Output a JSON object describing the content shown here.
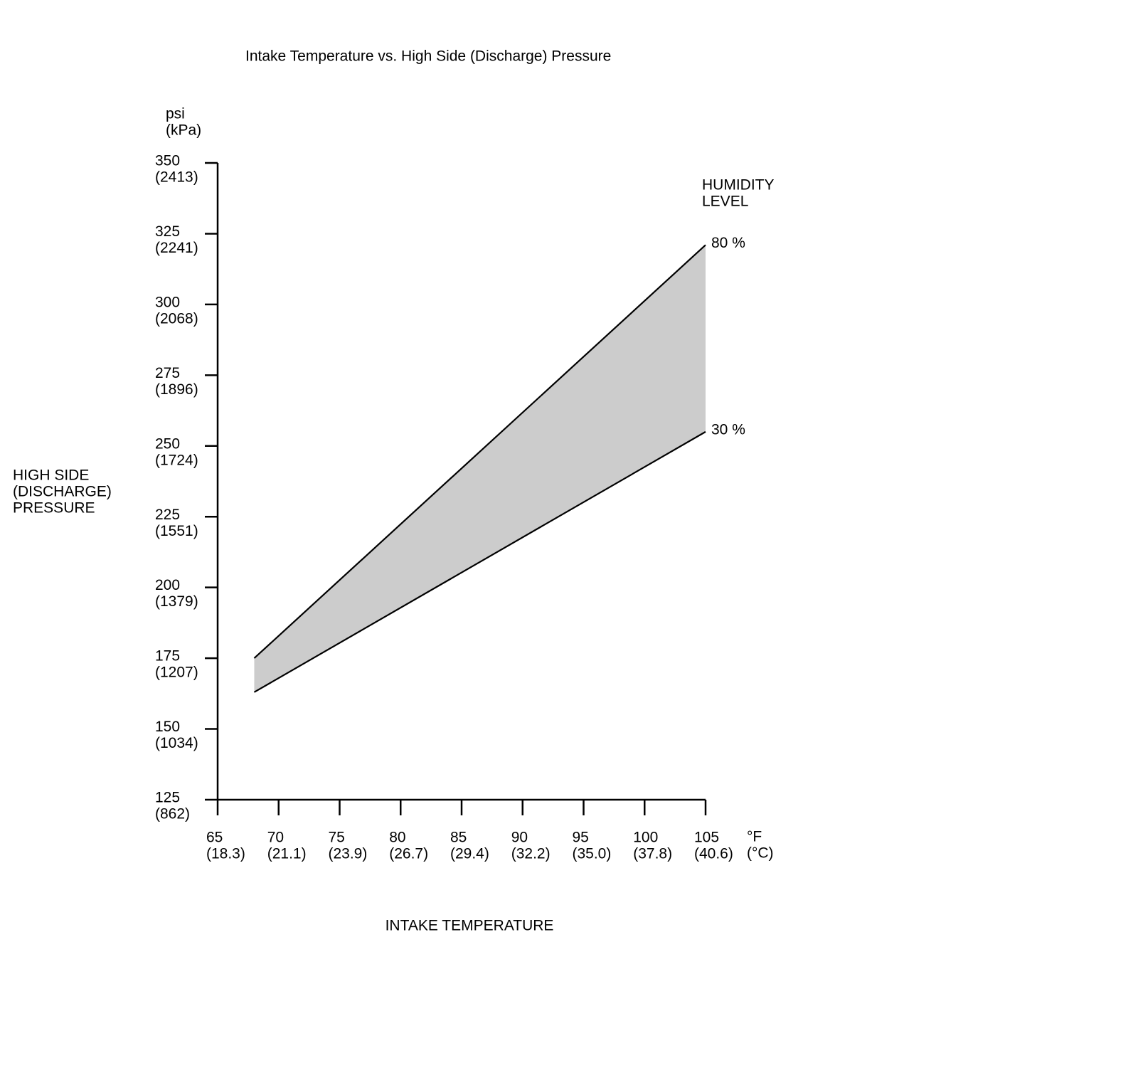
{
  "chart_data": {
    "type": "line",
    "title": "Intake Temperature vs. High Side (Discharge) Pressure",
    "x_label": "INTAKE TEMPERATURE",
    "x_unit": [
      "°F",
      "(°C)"
    ],
    "y_label": [
      "HIGH SIDE",
      "(DISCHARGE)",
      "PRESSURE"
    ],
    "y_unit": [
      "psi",
      "(kPa)"
    ],
    "legend_title": [
      "HUMIDITY",
      "LEVEL"
    ],
    "x": [
      68,
      105
    ],
    "series": [
      {
        "name": "80 %",
        "color": "#000000",
        "values": [
          175,
          321
        ]
      },
      {
        "name": "30 %",
        "color": "#000000",
        "values": [
          163,
          255
        ]
      }
    ],
    "fill_between_color": "#cccccc",
    "xlim": [
      65,
      105
    ],
    "ylim": [
      125,
      350
    ],
    "xticks": [
      {
        "value": 65,
        "label": [
          "65",
          "(18.3)"
        ]
      },
      {
        "value": 70,
        "label": [
          "70",
          "(21.1)"
        ]
      },
      {
        "value": 75,
        "label": [
          "75",
          "(23.9)"
        ]
      },
      {
        "value": 80,
        "label": [
          "80",
          "(26.7)"
        ]
      },
      {
        "value": 85,
        "label": [
          "85",
          "(29.4)"
        ]
      },
      {
        "value": 90,
        "label": [
          "90",
          "(32.2)"
        ]
      },
      {
        "value": 95,
        "label": [
          "95",
          "(35.0)"
        ]
      },
      {
        "value": 100,
        "label": [
          "100",
          "(37.8)"
        ]
      },
      {
        "value": 105,
        "label": [
          "105",
          "(40.6)"
        ]
      }
    ],
    "yticks": [
      {
        "value": 125,
        "label": [
          "125",
          "(862)"
        ]
      },
      {
        "value": 150,
        "label": [
          "150",
          "(1034)"
        ]
      },
      {
        "value": 175,
        "label": [
          "175",
          "(1207)"
        ]
      },
      {
        "value": 200,
        "label": [
          "200",
          "(1379)"
        ]
      },
      {
        "value": 225,
        "label": [
          "225",
          "(1551)"
        ]
      },
      {
        "value": 250,
        "label": [
          "250",
          "(1724)"
        ]
      },
      {
        "value": 275,
        "label": [
          "275",
          "(1896)"
        ]
      },
      {
        "value": 300,
        "label": [
          "300",
          "(2068)"
        ]
      },
      {
        "value": 325,
        "label": [
          "325",
          "(2241)"
        ]
      },
      {
        "value": 350,
        "label": [
          "350",
          "(2413)"
        ]
      }
    ],
    "grid": false
  }
}
